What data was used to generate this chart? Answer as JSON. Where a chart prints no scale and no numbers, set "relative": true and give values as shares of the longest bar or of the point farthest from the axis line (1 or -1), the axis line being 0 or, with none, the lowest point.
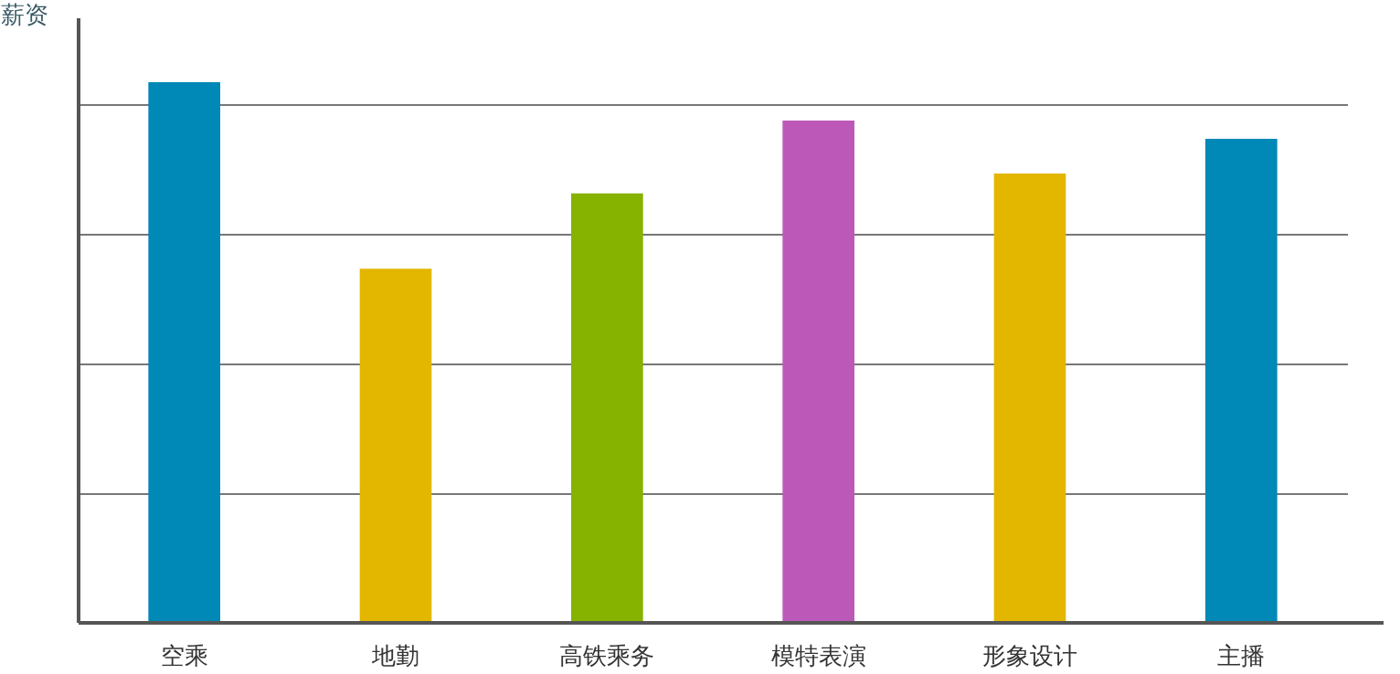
{
  "chart_data": {
    "type": "bar",
    "ylabel": "薪资",
    "relative": true,
    "grid": "y",
    "categories": [
      "空乘",
      "地勤",
      "高铁乘务",
      "模特表演",
      "形象设计",
      "主播"
    ],
    "values": [
      1,
      0.655,
      0.794,
      0.929,
      0.831,
      0.895
    ],
    "colors": [
      "#0088b6",
      "#e3b600",
      "#86b200",
      "#bc59b8",
      "#e3b600",
      "#0088b6"
    ]
  }
}
